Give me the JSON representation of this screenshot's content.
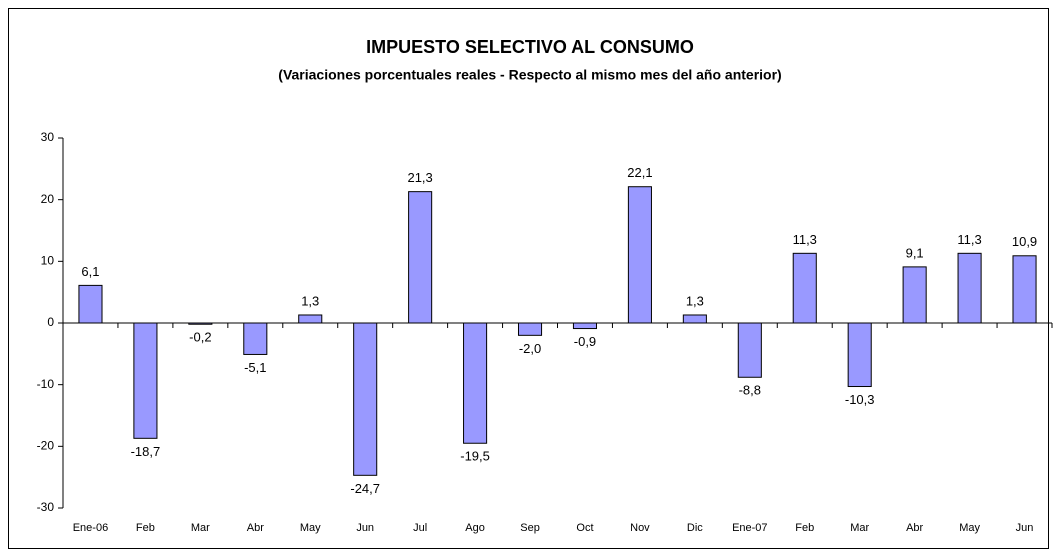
{
  "chart_data": {
    "type": "bar",
    "title": "IMPUESTO SELECTIVO AL CONSUMO",
    "subtitle": "(Variaciones porcentuales reales - Respecto al mismo mes del año anterior)",
    "categories": [
      "Ene-06",
      "Feb",
      "Mar",
      "Abr",
      "May",
      "Jun",
      "Jul",
      "Ago",
      "Sep",
      "Oct",
      "Nov",
      "Dic",
      "Ene-07",
      "Feb",
      "Mar",
      "Abr",
      "May",
      "Jun"
    ],
    "values": [
      6.1,
      -18.7,
      -0.2,
      -5.1,
      1.3,
      -24.7,
      21.3,
      -19.5,
      -2.0,
      -0.9,
      22.1,
      1.3,
      -8.8,
      11.3,
      -10.3,
      9.1,
      11.3,
      10.9
    ],
    "value_labels": [
      "6,1",
      "-18,7",
      "-0,2",
      "-5,1",
      "1,3",
      "-24,7",
      "21,3",
      "-19,5",
      "-2,0",
      "-0,9",
      "22,1",
      "1,3",
      "-8,8",
      "11,3",
      "-10,3",
      "9,1",
      "11,3",
      "10,9"
    ],
    "color": "#9999ff",
    "ylim": [
      -30,
      30
    ],
    "yticks": [
      -30,
      -20,
      -10,
      0,
      10,
      20,
      30
    ],
    "grid": false
  }
}
